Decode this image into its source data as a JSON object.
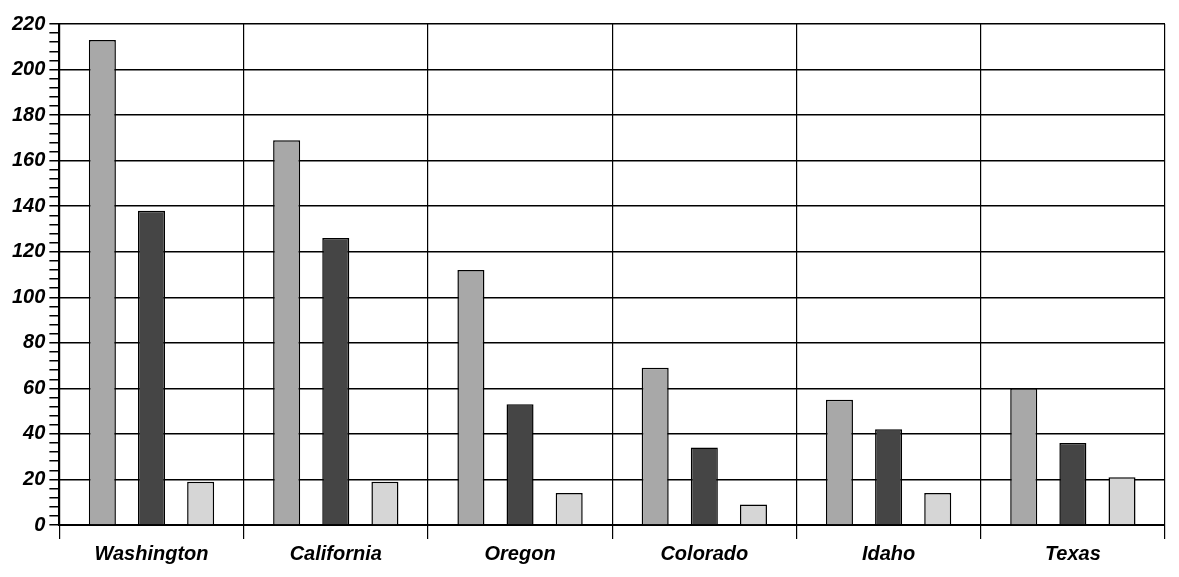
{
  "chart_data": {
    "type": "bar",
    "categories": [
      "Washington",
      "California",
      "Oregon",
      "Colorado",
      "Idaho",
      "Texas"
    ],
    "series": [
      {
        "color": "#a8a8a8",
        "values": [
          213,
          169,
          112,
          69,
          55,
          60
        ]
      },
      {
        "color": "#454545",
        "values": [
          138,
          126,
          53,
          34,
          42,
          36
        ]
      },
      {
        "color": "#d6d6d6",
        "values": [
          19,
          19,
          14,
          9,
          14,
          21
        ]
      }
    ],
    "ylim": [
      0,
      220
    ],
    "yticks": [
      0,
      {
        "value": 4,
        "label": null
      },
      {
        "value": 8,
        "label": null
      },
      {
        "value": 12,
        "label": null
      },
      {
        "value": 16,
        "label": null
      },
      20,
      {
        "value": 24,
        "label": null
      },
      {
        "value": 28,
        "label": null
      },
      {
        "value": 32,
        "label": null
      },
      {
        "value": 36,
        "label": null
      },
      40,
      {
        "value": 44,
        "label": null
      },
      {
        "value": 48,
        "label": null
      },
      {
        "value": 52,
        "label": null
      },
      {
        "value": 56,
        "label": null
      },
      60,
      {
        "value": 64,
        "label": null
      },
      {
        "value": 68,
        "label": null
      },
      {
        "value": 72,
        "label": null
      },
      {
        "value": 76,
        "label": null
      },
      80,
      {
        "value": 84,
        "label": null
      },
      {
        "value": 88,
        "label": null
      },
      {
        "value": 92,
        "label": null
      },
      {
        "value": 96,
        "label": null
      },
      100,
      {
        "value": 104,
        "label": null
      },
      {
        "value": 108,
        "label": null
      },
      {
        "value": 112,
        "label": null
      },
      {
        "value": 116,
        "label": null
      },
      120,
      {
        "value": 124,
        "label": null
      },
      {
        "value": 128,
        "label": null
      },
      {
        "value": 132,
        "label": null
      },
      {
        "value": 136,
        "label": null
      },
      140,
      {
        "value": 144,
        "label": null
      },
      {
        "value": 148,
        "label": null
      },
      {
        "value": 152,
        "label": null
      },
      {
        "value": 156,
        "label": null
      },
      160,
      {
        "value": 164,
        "label": null
      },
      {
        "value": 168,
        "label": null
      },
      {
        "value": 172,
        "label": null
      },
      {
        "value": 176,
        "label": null
      },
      180,
      {
        "value": 184,
        "label": null
      },
      {
        "value": 188,
        "label": null
      },
      {
        "value": 192,
        "label": null
      },
      {
        "value": 196,
        "label": null
      },
      200,
      {
        "value": 204,
        "label": null
      },
      {
        "value": 208,
        "label": null
      },
      {
        "value": 212,
        "label": null
      },
      {
        "value": 216,
        "label": null
      },
      220
    ],
    "grid": true,
    "legend": false
  }
}
